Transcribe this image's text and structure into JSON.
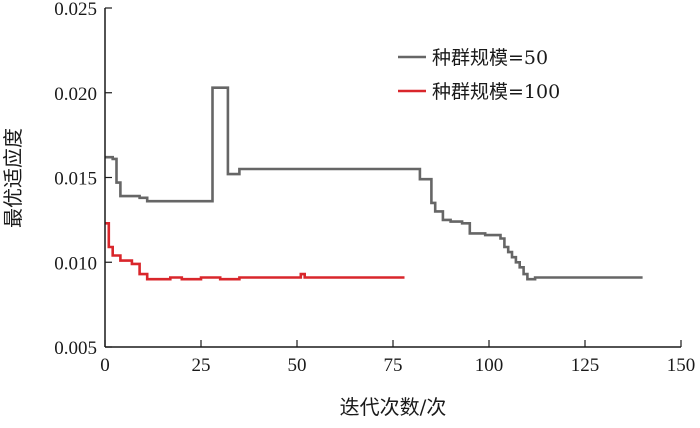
{
  "chart_data": {
    "type": "line",
    "xlabel": "迭代次数/次",
    "ylabel": "最优适应度",
    "xlim": [
      0,
      150
    ],
    "ylim": [
      0.005,
      0.025
    ],
    "xticks": [
      "0",
      "25",
      "50",
      "75",
      "100",
      "125",
      "150"
    ],
    "yticks": [
      "0.005",
      "0.010",
      "0.015",
      "0.020",
      "0.025"
    ],
    "grid": false,
    "legend_position": "top-right",
    "step": true,
    "series": [
      {
        "name": "种群规模=50",
        "color": "#666666",
        "x": [
          0,
          2,
          3,
          4,
          9,
          11,
          27,
          28,
          32,
          35,
          62,
          68,
          75,
          82,
          85,
          86,
          88,
          90,
          93,
          95,
          99,
          103,
          104,
          105,
          106,
          107,
          108,
          109,
          110,
          112,
          140
        ],
        "y": [
          0.0162,
          0.0161,
          0.0147,
          0.0139,
          0.0138,
          0.0136,
          0.0136,
          0.0203,
          0.0152,
          0.0155,
          0.0155,
          0.0155,
          0.0155,
          0.0149,
          0.0135,
          0.013,
          0.0125,
          0.0124,
          0.0123,
          0.0117,
          0.0116,
          0.0114,
          0.0109,
          0.0106,
          0.0103,
          0.01,
          0.0097,
          0.0093,
          0.009,
          0.0091,
          0.0091
        ]
      },
      {
        "name": "种群规模=100",
        "color": "#d9262b",
        "x": [
          0,
          1,
          2,
          4,
          7,
          9,
          11,
          13,
          17,
          20,
          25,
          28,
          30,
          35,
          45,
          50,
          51,
          52,
          60,
          78
        ],
        "y": [
          0.0123,
          0.0109,
          0.0104,
          0.0101,
          0.0099,
          0.0093,
          0.009,
          0.009,
          0.0091,
          0.009,
          0.0091,
          0.0091,
          0.009,
          0.0091,
          0.0091,
          0.0091,
          0.0093,
          0.0091,
          0.0091,
          0.0091
        ]
      }
    ]
  }
}
